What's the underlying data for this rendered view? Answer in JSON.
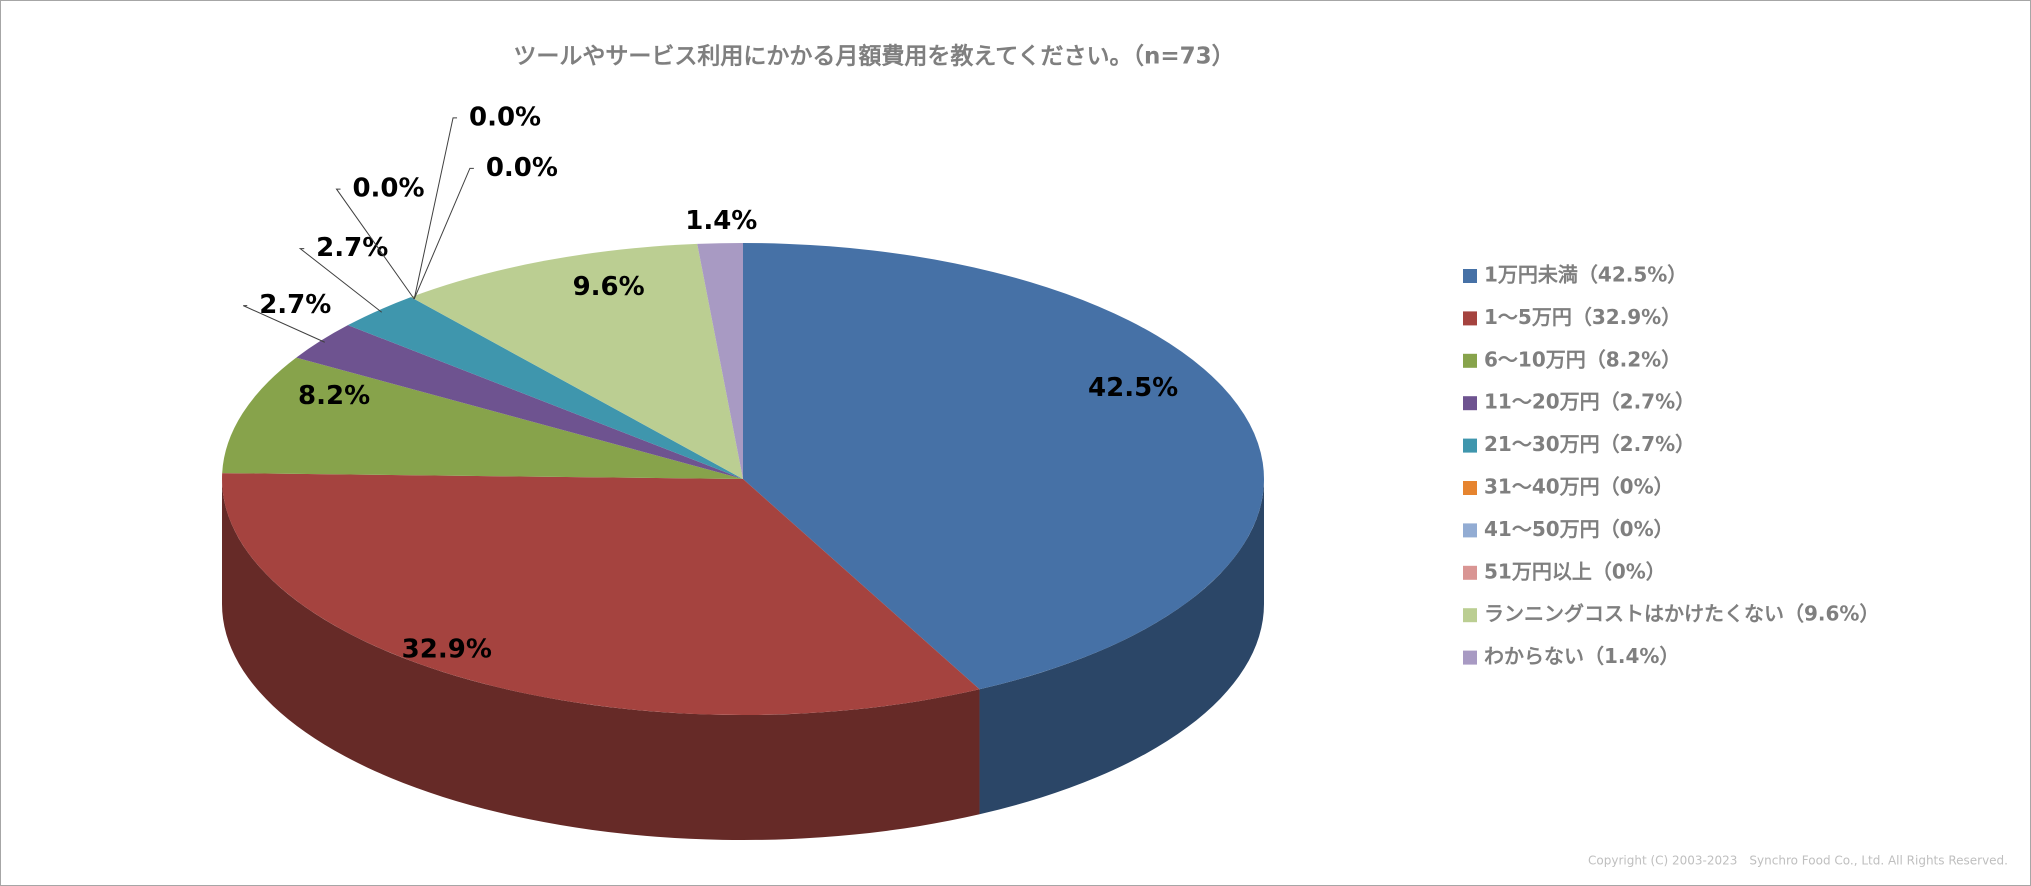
{
  "chart_data": {
    "type": "pie3d",
    "title": "ツールやサービス利用にかかる月額費用を教えてください。（n=73）",
    "categories": [
      "1万円未満（42.5%）",
      "1～5万円（32.9%）",
      "6～10万円（8.2%）",
      "11～20万円（2.7%）",
      "21～30万円（2.7%）",
      "31～40万円（0%）",
      "41～50万円（0%）",
      "51万円以上（0%）",
      "ランニングコストはかけたくない（9.6%）",
      "わからない（1.4%）"
    ],
    "values": [
      42.5,
      32.9,
      8.2,
      2.7,
      2.7,
      0,
      0,
      0,
      9.6,
      1.4
    ],
    "value_labels": [
      "42.5%",
      "32.9%",
      "8.2%",
      "2.7%",
      "2.7%",
      "0.0%",
      "0.0%",
      "0.0%",
      "9.6%",
      "1.4%"
    ],
    "colors": [
      "#4671a6",
      "#a5433f",
      "#87a34b",
      "#6e5390",
      "#3f96ad",
      "#e6842f",
      "#92acd3",
      "#d99593",
      "#bbce92",
      "#a89ac3"
    ],
    "legend": "right",
    "copyright": "Copyright (C) 2003-2023　Synchro Food Co., Ltd. All Rights Reserved."
  }
}
